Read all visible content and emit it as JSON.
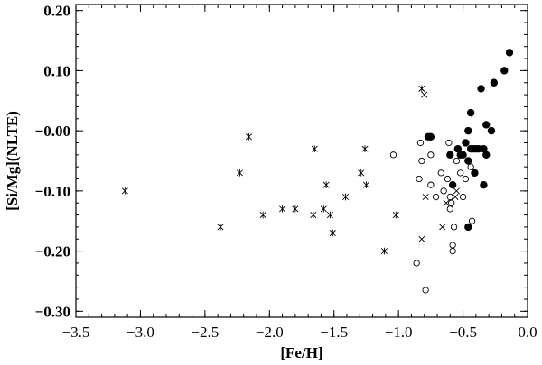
{
  "chart_data": {
    "type": "scatter",
    "title": "",
    "xlabel": "[Fe/H]",
    "ylabel": "[Si/Mg](NLTE)",
    "xlim": [
      -3.5,
      0.0
    ],
    "ylim": [
      -0.31,
      0.21
    ],
    "x_ticks": [
      "−3.5",
      "−3.0",
      "−2.5",
      "−2.0",
      "−1.5",
      "−1.0",
      "−0.5",
      "0.0"
    ],
    "y_ticks": [
      "0.20",
      "0.10",
      "−0.00",
      "−0.10",
      "−0.20",
      "−0.30"
    ],
    "x_tick_values": [
      -3.5,
      -3.0,
      -2.5,
      -2.0,
      -1.5,
      -1.0,
      -0.5,
      0.0
    ],
    "y_tick_values": [
      0.2,
      0.1,
      0.0,
      -0.1,
      -0.2,
      -0.3
    ],
    "grid": false,
    "series": [
      {
        "marker": "asterisk",
        "points": [
          [
            -3.12,
            -0.1
          ],
          [
            -2.38,
            -0.16
          ],
          [
            -2.23,
            -0.07
          ],
          [
            -2.16,
            -0.01
          ],
          [
            -2.05,
            -0.14
          ],
          [
            -1.9,
            -0.13
          ],
          [
            -1.8,
            -0.13
          ],
          [
            -1.66,
            -0.14
          ],
          [
            -1.65,
            -0.03
          ],
          [
            -1.58,
            -0.13
          ],
          [
            -1.56,
            -0.09
          ],
          [
            -1.53,
            -0.14
          ],
          [
            -1.51,
            -0.17
          ],
          [
            -1.41,
            -0.11
          ],
          [
            -1.29,
            -0.07
          ],
          [
            -1.26,
            -0.03
          ],
          [
            -1.25,
            -0.09
          ],
          [
            -1.11,
            -0.2
          ],
          [
            -1.02,
            -0.14
          ],
          [
            -0.82,
            0.07
          ]
        ]
      },
      {
        "marker": "cross",
        "points": [
          [
            -0.8,
            0.06
          ],
          [
            -0.82,
            -0.18
          ],
          [
            -0.79,
            -0.11
          ],
          [
            -0.66,
            -0.16
          ],
          [
            -0.63,
            -0.12
          ],
          [
            -0.56,
            -0.11
          ],
          [
            -0.55,
            -0.1
          ]
        ]
      },
      {
        "marker": "open-circle",
        "points": [
          [
            -1.04,
            -0.04
          ],
          [
            -0.86,
            -0.22
          ],
          [
            -0.84,
            -0.08
          ],
          [
            -0.83,
            -0.02
          ],
          [
            -0.82,
            -0.05
          ],
          [
            -0.79,
            -0.265
          ],
          [
            -0.75,
            -0.04
          ],
          [
            -0.75,
            -0.09
          ],
          [
            -0.71,
            -0.11
          ],
          [
            -0.67,
            -0.07
          ],
          [
            -0.65,
            -0.1
          ],
          [
            -0.62,
            -0.08
          ],
          [
            -0.61,
            -0.02
          ],
          [
            -0.6,
            -0.11
          ],
          [
            -0.6,
            -0.13
          ],
          [
            -0.59,
            -0.12
          ],
          [
            -0.58,
            -0.19
          ],
          [
            -0.58,
            -0.2
          ],
          [
            -0.57,
            -0.16
          ],
          [
            -0.55,
            -0.05
          ],
          [
            -0.52,
            -0.07
          ],
          [
            -0.5,
            -0.11
          ],
          [
            -0.48,
            -0.08
          ],
          [
            -0.44,
            -0.06
          ],
          [
            -0.43,
            -0.15
          ]
        ]
      },
      {
        "marker": "filled-circle",
        "points": [
          [
            -0.77,
            -0.01
          ],
          [
            -0.75,
            -0.01
          ],
          [
            -0.6,
            -0.04
          ],
          [
            -0.58,
            -0.09
          ],
          [
            -0.54,
            -0.03
          ],
          [
            -0.52,
            -0.04
          ],
          [
            -0.5,
            -0.04
          ],
          [
            -0.48,
            -0.02
          ],
          [
            -0.46,
            0.0
          ],
          [
            -0.46,
            -0.05
          ],
          [
            -0.46,
            -0.16
          ],
          [
            -0.44,
            0.03
          ],
          [
            -0.44,
            -0.03
          ],
          [
            -0.42,
            -0.03
          ],
          [
            -0.41,
            -0.07
          ],
          [
            -0.4,
            -0.03
          ],
          [
            -0.38,
            -0.03
          ],
          [
            -0.36,
            0.07
          ],
          [
            -0.34,
            -0.09
          ],
          [
            -0.34,
            -0.03
          ],
          [
            -0.32,
            0.01
          ],
          [
            -0.32,
            -0.04
          ],
          [
            -0.28,
            0.0
          ],
          [
            -0.26,
            0.08
          ],
          [
            -0.18,
            0.1
          ],
          [
            -0.14,
            0.13
          ]
        ]
      }
    ]
  }
}
